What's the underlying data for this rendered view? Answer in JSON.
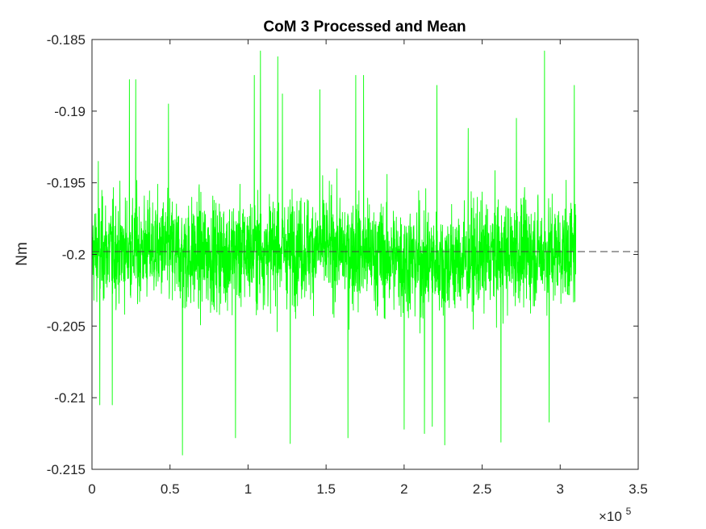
{
  "chart_data": {
    "type": "line",
    "title": "CoM 3 Processed and Mean",
    "xlabel": "",
    "ylabel": "Nm",
    "xlim": [
      0,
      350000
    ],
    "ylim": [
      -0.215,
      -0.185
    ],
    "x_exponent_label": "×10",
    "x_exponent_power": "5",
    "x_tick_labels": [
      "0",
      "0.5",
      "1",
      "1.5",
      "2",
      "2.5",
      "3",
      "3.5"
    ],
    "y_tick_labels": [
      "-0.185",
      "-0.19",
      "-0.195",
      "-0.2",
      "-0.205",
      "-0.21",
      "-0.215"
    ],
    "x_ticks": [
      0,
      50000,
      100000,
      150000,
      200000,
      250000,
      300000,
      350000
    ],
    "y_ticks": [
      -0.185,
      -0.19,
      -0.195,
      -0.2,
      -0.205,
      -0.21,
      -0.215
    ],
    "grid": false,
    "series": [
      {
        "kind": "signal",
        "color": "#00ff00",
        "x_range": [
          0,
          310000
        ],
        "center": -0.1998,
        "envelope": [
          [
            0,
            -0.1998,
            0.0045
          ],
          [
            40000,
            -0.1996,
            0.0045
          ],
          [
            60000,
            -0.2001,
            0.005
          ],
          [
            100000,
            -0.1998,
            0.0047
          ],
          [
            150000,
            -0.1995,
            0.0045
          ],
          [
            200000,
            -0.2004,
            0.005
          ],
          [
            230000,
            -0.2006,
            0.0048
          ],
          [
            260000,
            -0.2,
            0.0047
          ],
          [
            310000,
            -0.1998,
            0.0045
          ]
        ],
        "peaks_high": [
          [
            4000,
            -0.1935
          ],
          [
            24000,
            -0.1878
          ],
          [
            28000,
            -0.1878
          ],
          [
            49000,
            -0.1895
          ],
          [
            104000,
            -0.1875
          ],
          [
            108000,
            -0.1858
          ],
          [
            119000,
            -0.1862
          ],
          [
            122000,
            -0.1888
          ],
          [
            146000,
            -0.1885
          ],
          [
            169000,
            -0.1875
          ],
          [
            174000,
            -0.1875
          ],
          [
            221000,
            -0.1882
          ],
          [
            241000,
            -0.1912
          ],
          [
            272000,
            -0.1905
          ],
          [
            290000,
            -0.1858
          ],
          [
            309000,
            -0.1882
          ]
        ],
        "peaks_low": [
          [
            5000,
            -0.2105
          ],
          [
            13000,
            -0.2105
          ],
          [
            58000,
            -0.214
          ],
          [
            92000,
            -0.2128
          ],
          [
            127000,
            -0.2132
          ],
          [
            164000,
            -0.2128
          ],
          [
            200000,
            -0.2122
          ],
          [
            213000,
            -0.2125
          ],
          [
            218000,
            -0.212
          ],
          [
            226000,
            -0.2133
          ],
          [
            262000,
            -0.2131
          ],
          [
            293000,
            -0.2117
          ]
        ]
      },
      {
        "kind": "mean",
        "color": "#404040",
        "y": -0.1998,
        "x_range": [
          0,
          350000
        ],
        "dashed": true
      }
    ]
  }
}
